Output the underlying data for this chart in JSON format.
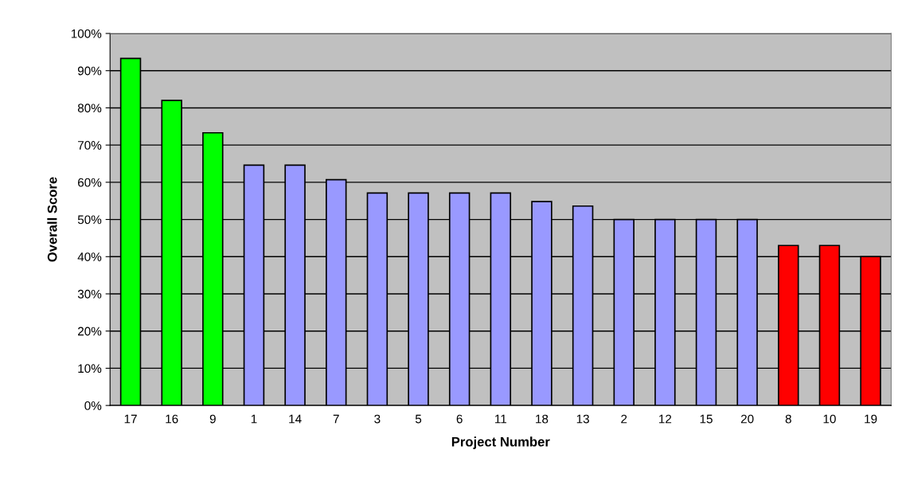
{
  "chart_data": {
    "type": "bar",
    "xlabel": "Project Number",
    "ylabel": "Overall Score",
    "categories": [
      "17",
      "16",
      "9",
      "1",
      "14",
      "7",
      "3",
      "5",
      "6",
      "11",
      "18",
      "13",
      "2",
      "12",
      "15",
      "20",
      "8",
      "10",
      "19"
    ],
    "values": [
      93.3,
      82,
      73.3,
      64.6,
      64.6,
      60.7,
      57.1,
      57.1,
      57.1,
      57.1,
      54.8,
      53.6,
      50,
      50,
      50,
      50,
      43,
      43,
      40
    ],
    "colors": [
      "#00ff00",
      "#00ff00",
      "#00ff00",
      "#9999ff",
      "#9999ff",
      "#9999ff",
      "#9999ff",
      "#9999ff",
      "#9999ff",
      "#9999ff",
      "#9999ff",
      "#9999ff",
      "#9999ff",
      "#9999ff",
      "#9999ff",
      "#9999ff",
      "#ff0000",
      "#ff0000",
      "#ff0000"
    ],
    "ylim": [
      0,
      100
    ],
    "yticks": [
      {
        "value": 0,
        "label": "0%"
      },
      {
        "value": 10,
        "label": "10%"
      },
      {
        "value": 20,
        "label": "20%"
      },
      {
        "value": 30,
        "label": "30%"
      },
      {
        "value": 40,
        "label": "40%"
      },
      {
        "value": 50,
        "label": "50%"
      },
      {
        "value": 60,
        "label": "60%"
      },
      {
        "value": 70,
        "label": "70%"
      },
      {
        "value": 80,
        "label": "80%"
      },
      {
        "value": 90,
        "label": "90%"
      },
      {
        "value": 100,
        "label": "100%"
      }
    ],
    "grid": "y"
  }
}
